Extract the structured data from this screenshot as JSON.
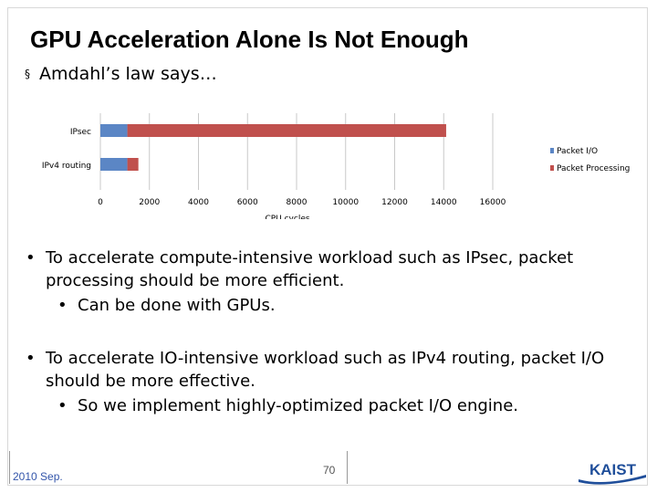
{
  "slide": {
    "title": "GPU Acceleration Alone Is Not Enough",
    "subtitle": "Amdahl’s law says…",
    "subtitle_marker": "§"
  },
  "chart_data": {
    "type": "bar",
    "orientation": "horizontal",
    "stacked": true,
    "categories": [
      "IPsec",
      "IPv4 routing"
    ],
    "series": [
      {
        "name": "Packet I/O",
        "values": [
          1100,
          1100
        ],
        "color": "#5b86c5"
      },
      {
        "name": "Packet Processing",
        "values": [
          13000,
          450
        ],
        "color": "#c0504d"
      }
    ],
    "xlabel": "CPU cycles",
    "ylabel": "",
    "xlim": [
      0,
      16000
    ],
    "xticks": [
      "0",
      "2000",
      "4000",
      "6000",
      "8000",
      "10000",
      "12000",
      "14000",
      "16000"
    ],
    "grid": true,
    "legend": "right"
  },
  "bullets": [
    {
      "marker": "•",
      "text": "To accelerate compute-intensive workload such as IPsec, packet processing should be more efficient."
    },
    {
      "marker": "•",
      "text": "Can be done with GPUs."
    },
    {
      "marker": "•",
      "text": "To accelerate IO-intensive workload such as IPv4 routing, packet I/O should be more effective."
    },
    {
      "marker": "•",
      "text": "So we implement highly-optimized packet I/O engine."
    }
  ],
  "footer": {
    "date": "2010 Sep.",
    "page": "70",
    "logo_text": "KAIST",
    "logo_color": "#1f4e9a"
  }
}
